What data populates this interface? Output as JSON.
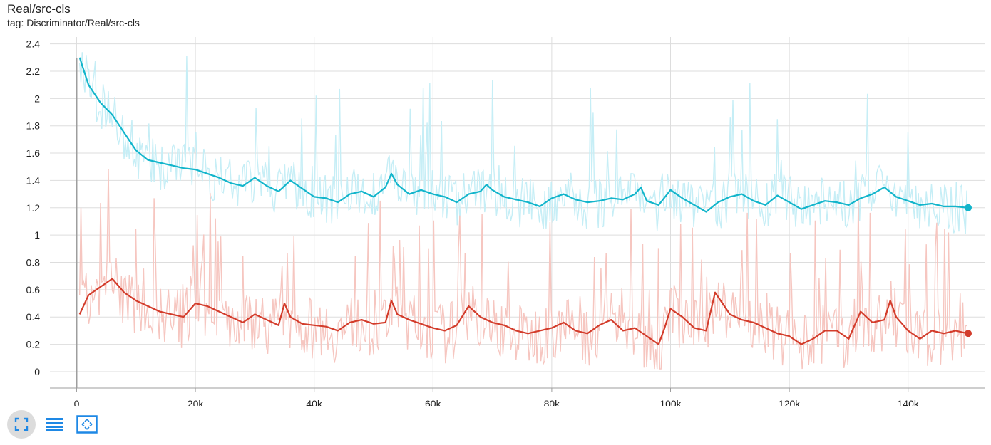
{
  "header": {
    "title": "Real/src-cls",
    "tag": "tag: Discriminator/Real/src-cls"
  },
  "toolbar": {
    "buttons": [
      {
        "icon": "fullscreen-icon"
      },
      {
        "icon": "data-table-icon"
      },
      {
        "icon": "fit-domain-icon"
      }
    ]
  },
  "colors": {
    "series_blue": "#12b5cb",
    "series_blue_raw": "#c6eef6",
    "series_red": "#d33c2b",
    "series_red_raw": "#f6c6c0",
    "grid": "#dddddd",
    "axis": "#9e9e9e",
    "toolbar_icon": "#1e88e5"
  },
  "chart_data": {
    "type": "line",
    "title": "Real/src-cls",
    "xlabel": "",
    "ylabel": "",
    "xlim": [
      -4500,
      153000
    ],
    "ylim": [
      -0.12,
      2.45
    ],
    "x_ticks": [
      0,
      20000,
      40000,
      60000,
      80000,
      100000,
      120000,
      140000
    ],
    "x_tick_labels": [
      "0",
      "20k",
      "40k",
      "60k",
      "80k",
      "100k",
      "120k",
      "140k"
    ],
    "y_ticks": [
      0,
      0.2,
      0.4,
      0.6,
      0.8,
      1,
      1.2,
      1.4,
      1.6,
      1.8,
      2,
      2.2,
      2.4
    ],
    "y_tick_labels": [
      "0",
      "0.2",
      "0.4",
      "0.6",
      "0.8",
      "1",
      "1.2",
      "1.4",
      "1.6",
      "1.8",
      "2",
      "2.2",
      "2.4"
    ],
    "grid": true,
    "series": [
      {
        "color": "#12b5cb",
        "x": [
          500,
          2000,
          4000,
          6000,
          8000,
          10000,
          12000,
          14000,
          16000,
          18000,
          20000,
          22000,
          24000,
          26000,
          28000,
          30000,
          32000,
          34000,
          36000,
          38000,
          40000,
          42000,
          44000,
          46000,
          48000,
          50000,
          52000,
          53000,
          54000,
          56000,
          58000,
          60000,
          62000,
          64000,
          66000,
          68000,
          69000,
          70000,
          72000,
          74000,
          76000,
          78000,
          80000,
          82000,
          84000,
          86000,
          88000,
          90000,
          92000,
          94000,
          95000,
          96000,
          98000,
          100000,
          102000,
          104000,
          106000,
          108000,
          110000,
          112000,
          114000,
          116000,
          118000,
          120000,
          122000,
          124000,
          126000,
          128000,
          130000,
          132000,
          134000,
          136000,
          138000,
          140000,
          142000,
          144000,
          146000,
          148000,
          150000
        ],
        "y": [
          2.3,
          2.1,
          1.97,
          1.88,
          1.75,
          1.62,
          1.55,
          1.53,
          1.51,
          1.49,
          1.48,
          1.45,
          1.42,
          1.38,
          1.36,
          1.42,
          1.36,
          1.32,
          1.4,
          1.34,
          1.28,
          1.27,
          1.24,
          1.3,
          1.32,
          1.28,
          1.35,
          1.45,
          1.37,
          1.3,
          1.33,
          1.3,
          1.28,
          1.24,
          1.3,
          1.32,
          1.37,
          1.33,
          1.28,
          1.26,
          1.24,
          1.21,
          1.27,
          1.3,
          1.26,
          1.24,
          1.25,
          1.27,
          1.26,
          1.3,
          1.35,
          1.25,
          1.22,
          1.33,
          1.27,
          1.22,
          1.17,
          1.24,
          1.28,
          1.3,
          1.25,
          1.22,
          1.29,
          1.24,
          1.19,
          1.22,
          1.25,
          1.24,
          1.22,
          1.27,
          1.3,
          1.35,
          1.28,
          1.25,
          1.22,
          1.23,
          1.21,
          1.21,
          1.2
        ]
      },
      {
        "color": "#d33c2b",
        "x": [
          500,
          2000,
          4000,
          6000,
          8000,
          10000,
          12000,
          14000,
          16000,
          18000,
          20000,
          22000,
          24000,
          26000,
          28000,
          30000,
          32000,
          34000,
          35000,
          36000,
          38000,
          40000,
          42000,
          44000,
          46000,
          48000,
          50000,
          52000,
          53000,
          54000,
          56000,
          58000,
          60000,
          62000,
          64000,
          66000,
          68000,
          70000,
          72000,
          74000,
          76000,
          78000,
          80000,
          82000,
          84000,
          86000,
          88000,
          90000,
          92000,
          94000,
          96000,
          98000,
          99000,
          100000,
          102000,
          104000,
          106000,
          107500,
          110000,
          112000,
          114000,
          116000,
          118000,
          120000,
          122000,
          124000,
          126000,
          128000,
          130000,
          132000,
          134000,
          136000,
          137000,
          138000,
          140000,
          142000,
          144000,
          146000,
          148000,
          150000
        ],
        "y": [
          0.42,
          0.56,
          0.62,
          0.68,
          0.58,
          0.52,
          0.48,
          0.44,
          0.42,
          0.4,
          0.5,
          0.48,
          0.44,
          0.4,
          0.36,
          0.42,
          0.38,
          0.34,
          0.5,
          0.4,
          0.35,
          0.34,
          0.33,
          0.3,
          0.36,
          0.38,
          0.35,
          0.36,
          0.52,
          0.42,
          0.38,
          0.35,
          0.32,
          0.3,
          0.34,
          0.48,
          0.4,
          0.36,
          0.34,
          0.3,
          0.28,
          0.3,
          0.32,
          0.36,
          0.3,
          0.28,
          0.34,
          0.38,
          0.3,
          0.32,
          0.26,
          0.2,
          0.32,
          0.46,
          0.4,
          0.32,
          0.3,
          0.58,
          0.42,
          0.38,
          0.36,
          0.32,
          0.28,
          0.26,
          0.2,
          0.24,
          0.3,
          0.3,
          0.24,
          0.44,
          0.36,
          0.38,
          0.52,
          0.4,
          0.3,
          0.24,
          0.3,
          0.28,
          0.3,
          0.28
        ]
      }
    ]
  }
}
